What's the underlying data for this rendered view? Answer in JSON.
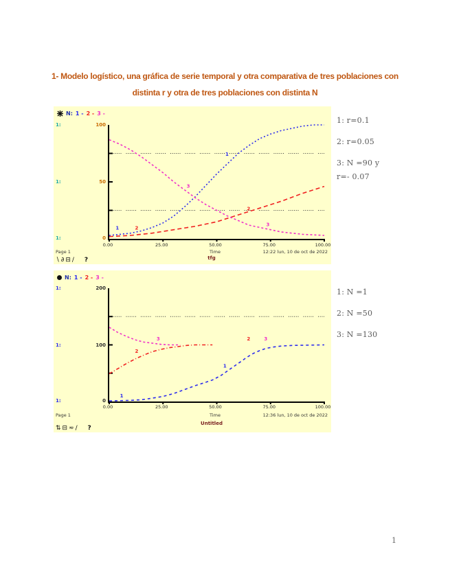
{
  "page": {
    "number": "1"
  },
  "title": {
    "line1": "1- Modelo logístico, una gráfica de serie temporal y otra comparativa de tres poblaciones con",
    "line2": "distinta r y otra de tres poblaciones con distinta N"
  },
  "colors": {
    "title_orange": "#bf5712",
    "chart_background": "#ffffcc",
    "series1_blue": "#2a2aee",
    "series2_red": "#f02020",
    "series3_magenta": "#f030c8",
    "legend_prefix_navy": "#2233aa",
    "scale_prefix_teal": "#1aa7a7",
    "scale_prefix_blue": "#2a2aee",
    "ylabel_orange": "#c96a00",
    "annotation_gray": "#5a5a5a"
  },
  "chart1": {
    "legend": {
      "prefix": "N:",
      "items": [
        {
          "text": "1 -",
          "color": "#2a2aee"
        },
        {
          "text": "2 -",
          "color": "#f02020"
        },
        {
          "text": "3 -",
          "color": "#f030c8"
        }
      ]
    },
    "scale_prefix": "1:",
    "footer": {
      "page_label": "Page 1",
      "timestamp": "12:22    lun, 10 de oct de 2022"
    },
    "toolbar": {
      "icons": "∖∂⊟∕",
      "help": "?"
    }
  },
  "annotations_chart1": [
    "1: r=0.1",
    "2: r=0.05",
    "3: N =90 y",
    "r=- 0.07"
  ],
  "chart2": {
    "legend": {
      "prefix": "N:",
      "items": [
        {
          "text": "1 -",
          "color": "#2a2aee"
        },
        {
          "text": "2 -",
          "color": "#f02020"
        },
        {
          "text": "3 -",
          "color": "#f030c8"
        }
      ]
    },
    "scale_prefix": "1:",
    "footer": {
      "page_label": "Page 1",
      "timestamp": "12:36    lun, 10 de oct de 2022"
    },
    "toolbar": {
      "icons": "⇅⊟≂∕",
      "help": "?"
    }
  },
  "annotations_chart2": [
    "1: N =1",
    "2: N =50",
    "3: N =130"
  ],
  "chart_data": [
    {
      "type": "line",
      "title": "tfg",
      "xlabel": "Time",
      "x_range": [
        0,
        100
      ],
      "y_range": [
        0,
        100
      ],
      "x_tick_values": [
        0,
        25,
        50,
        75,
        100
      ],
      "x_tick_labels": [
        "0.00",
        "25.00",
        "50.00",
        "75.00",
        "100.00"
      ],
      "y_tick_labels": [
        "100",
        "50",
        "0"
      ],
      "gridlines": [
        75,
        25
      ],
      "legend_position": "top-left",
      "series": [
        {
          "name": "1",
          "color": "#2a2aee",
          "dash": "2 3",
          "points": [
            [
              0,
              3
            ],
            [
              5,
              4
            ],
            [
              10,
              5
            ],
            [
              15,
              7
            ],
            [
              20,
              10
            ],
            [
              25,
              14
            ],
            [
              30,
              20
            ],
            [
              35,
              28
            ],
            [
              40,
              37
            ],
            [
              45,
              47
            ],
            [
              50,
              57
            ],
            [
              55,
              66
            ],
            [
              60,
              75
            ],
            [
              65,
              82
            ],
            [
              70,
              88
            ],
            [
              75,
              92
            ],
            [
              80,
              95
            ],
            [
              85,
              97
            ],
            [
              90,
              99
            ],
            [
              95,
              100
            ],
            [
              100,
              100
            ]
          ]
        },
        {
          "name": "2",
          "color": "#f02020",
          "dash": "6 4",
          "points": [
            [
              0,
              2
            ],
            [
              10,
              3
            ],
            [
              20,
              5
            ],
            [
              30,
              8
            ],
            [
              40,
              11
            ],
            [
              50,
              15
            ],
            [
              60,
              21
            ],
            [
              70,
              27
            ],
            [
              80,
              33
            ],
            [
              90,
              40
            ],
            [
              100,
              46
            ]
          ]
        },
        {
          "name": "3",
          "color": "#f030c8",
          "dash": "3 3",
          "points": [
            [
              0,
              87
            ],
            [
              5,
              83
            ],
            [
              10,
              78
            ],
            [
              15,
              72
            ],
            [
              20,
              65
            ],
            [
              25,
              58
            ],
            [
              30,
              50
            ],
            [
              35,
              43
            ],
            [
              40,
              36
            ],
            [
              45,
              30
            ],
            [
              50,
              25
            ],
            [
              55,
              20
            ],
            [
              60,
              16
            ],
            [
              65,
              12
            ],
            [
              70,
              10
            ],
            [
              75,
              8
            ],
            [
              80,
              6
            ],
            [
              85,
              5
            ],
            [
              90,
              4
            ],
            [
              100,
              3
            ]
          ]
        }
      ],
      "curve_labels": [
        {
          "text": "1",
          "t": 3,
          "v": 8,
          "color": "#2a2aee"
        },
        {
          "text": "2",
          "t": 12,
          "v": 8,
          "color": "#f02020"
        },
        {
          "text": "3",
          "t": 36,
          "v": 45,
          "color": "#f030c8"
        },
        {
          "text": "1",
          "t": 54,
          "v": 73,
          "color": "#2a2aee"
        },
        {
          "text": "2",
          "t": 64,
          "v": 25,
          "color": "#f02020"
        },
        {
          "text": "3",
          "t": 73,
          "v": 11,
          "color": "#f030c8"
        }
      ]
    },
    {
      "type": "line",
      "title": "Untitled",
      "xlabel": "Time",
      "x_range": [
        0,
        100
      ],
      "y_range": [
        0,
        200
      ],
      "x_tick_values": [
        0,
        25,
        50,
        75,
        100
      ],
      "x_tick_labels": [
        "0.00",
        "25.00",
        "50.00",
        "75.00",
        "100.00"
      ],
      "y_tick_labels": [
        "200",
        "100",
        "0"
      ],
      "gridlines": [
        150
      ],
      "legend_position": "top-left",
      "series": [
        {
          "name": "1",
          "color": "#2a2aee",
          "dash": "4 4",
          "points": [
            [
              0,
              1
            ],
            [
              10,
              2
            ],
            [
              15,
              3
            ],
            [
              20,
              6
            ],
            [
              25,
              9
            ],
            [
              30,
              14
            ],
            [
              35,
              21
            ],
            [
              40,
              28
            ],
            [
              45,
              34
            ],
            [
              48,
              38
            ],
            [
              52,
              46
            ],
            [
              55,
              54
            ],
            [
              58,
              62
            ],
            [
              61,
              70
            ],
            [
              64,
              78
            ],
            [
              67,
              85
            ],
            [
              70,
              90
            ],
            [
              73,
              94
            ],
            [
              76,
              96
            ],
            [
              80,
              98
            ],
            [
              85,
              99
            ],
            [
              100,
              100
            ]
          ]
        },
        {
          "name": "2",
          "color": "#f02020",
          "dash": "5 3 1 3",
          "points": [
            [
              0,
              49
            ],
            [
              4,
              58
            ],
            [
              8,
              67
            ],
            [
              12,
              75
            ],
            [
              16,
              82
            ],
            [
              20,
              88
            ],
            [
              24,
              92
            ],
            [
              28,
              95
            ],
            [
              32,
              97
            ],
            [
              36,
              99
            ],
            [
              40,
              100
            ],
            [
              48,
              100
            ]
          ]
        },
        {
          "name": "3",
          "color": "#f030c8",
          "dash": "3 3",
          "points": [
            [
              0,
              131
            ],
            [
              4,
              122
            ],
            [
              8,
              115
            ],
            [
              12,
              109
            ],
            [
              16,
              105
            ],
            [
              20,
              103
            ],
            [
              24,
              101
            ],
            [
              28,
              100
            ],
            [
              33,
              100
            ]
          ]
        }
      ],
      "curve_labels": [
        {
          "text": "1",
          "t": 5,
          "v": 7,
          "color": "#2a2aee"
        },
        {
          "text": "2",
          "t": 12,
          "v": 86,
          "color": "#f02020"
        },
        {
          "text": "3",
          "t": 22,
          "v": 108,
          "color": "#f030c8"
        },
        {
          "text": "1",
          "t": 53,
          "v": 60,
          "color": "#2a2aee"
        },
        {
          "text": "2",
          "t": 64,
          "v": 108,
          "color": "#f02020"
        },
        {
          "text": "3",
          "t": 72,
          "v": 108,
          "color": "#f030c8"
        }
      ]
    }
  ]
}
